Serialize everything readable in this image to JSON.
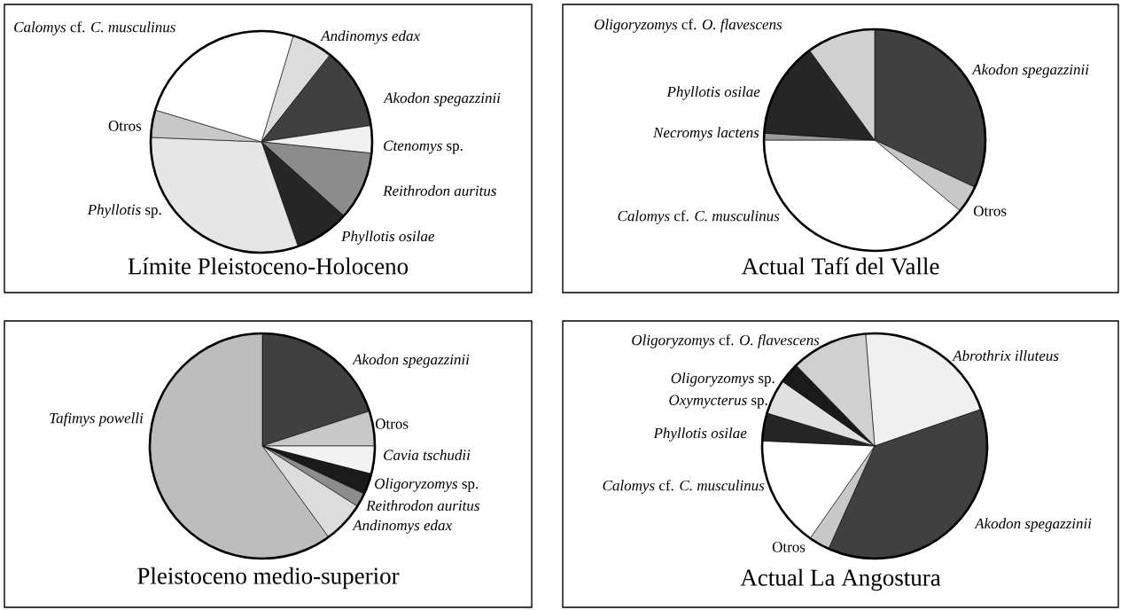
{
  "chart_data": [
    {
      "type": "pie",
      "title": "Límite Pleistoceno-Holoceno",
      "categories": [
        "*Andinomys edax*",
        "*Akodon spegazzinii*",
        "*Ctenomys* sp.",
        "*Reithrodon auritus*",
        "*Phyllotis osilae*",
        "*Phyllotis* sp.",
        "Otros",
        "*Calomys* cf. *C. musculinus*"
      ],
      "values": [
        6,
        12,
        4,
        10,
        8,
        31,
        4,
        25
      ],
      "colors": [
        "#dcdcdc",
        "#404040",
        "#f0f0f0",
        "#8c8c8c",
        "#262626",
        "#e6e6e6",
        "#c8c8c8",
        "#ffffff"
      ]
    },
    {
      "type": "pie",
      "title": "Actual Tafí del Valle",
      "categories": [
        "*Akodon spegazzinii*",
        "Otros",
        "*Calomys* cf. *C. musculinus*",
        "*Necromys lactens*",
        "*Phyllotis osilae*",
        "*Oligoryzomys* cf. *O. flavescens*"
      ],
      "values": [
        32,
        4,
        39,
        1,
        14,
        10
      ],
      "colors": [
        "#404040",
        "#c8c8c8",
        "#ffffff",
        "#9a9a9a",
        "#262626",
        "#d0d0d0"
      ]
    },
    {
      "type": "pie",
      "title": "Pleistoceno medio-superior",
      "categories": [
        "*Akodon spegazzinii*",
        "Otros",
        "*Cavia tschudii*",
        "*Oligoryzomys* sp.",
        "*Reithrodon auritus*",
        "*Andinomys edax*",
        "*Tafimys powelli*"
      ],
      "values": [
        20,
        5,
        4,
        3,
        2,
        6,
        60
      ],
      "colors": [
        "#404040",
        "#c8c8c8",
        "#f2f2f2",
        "#1a1a1a",
        "#8c8c8c",
        "#dcdcdc",
        "#bdbdbd"
      ]
    },
    {
      "type": "pie",
      "title": "Actual La Angostura",
      "categories": [
        "*Abrothrix illuteus*",
        "*Akodon spegazzinii*",
        "Otros",
        "*Calomys* cf. *C. musculinus*",
        "*Phyllotis osilae*",
        "*Oxymycterus* sp.",
        "*Oligoryzomys* sp.",
        "*Oligoryzomys* cf. *O. flavescens*"
      ],
      "values": [
        21,
        37,
        3,
        16,
        4,
        5,
        3,
        11
      ],
      "colors": [
        "#f0f0f0",
        "#404040",
        "#c8c8c8",
        "#ffffff",
        "#262626",
        "#e0e0e0",
        "#1a1a1a",
        "#d0d0d0"
      ]
    }
  ]
}
